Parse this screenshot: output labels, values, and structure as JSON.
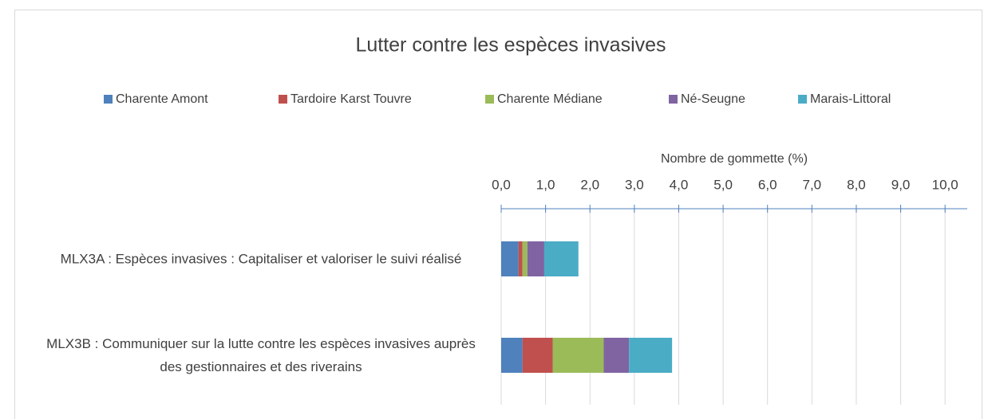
{
  "chart_data": {
    "type": "stacked-barh",
    "title": "Lutter contre les espèces invasives",
    "x_label": "Nombre de gommette (%)",
    "categories": [
      "MLX3A : Espèces invasives : Capitaliser et valoriser le suivi réalisé",
      "MLX3B : Communiquer sur la lutte contre les espèces invasives auprès des gestionnaires et des riverains"
    ],
    "series": [
      {
        "name": "Charente Amont",
        "color": "#4f81bd",
        "values": [
          0.39,
          0.48
        ]
      },
      {
        "name": "Tardoire Karst Touvre",
        "color": "#c0504d",
        "values": [
          0.09,
          0.68
        ]
      },
      {
        "name": "Charente Médiane",
        "color": "#9bbb59",
        "values": [
          0.11,
          1.15
        ]
      },
      {
        "name": "Né-Seugne",
        "color": "#8064a2",
        "values": [
          0.38,
          0.57
        ]
      },
      {
        "name": "Marais-Littoral",
        "color": "#4bacc6",
        "values": [
          0.77,
          0.97
        ]
      }
    ],
    "xlim": [
      0,
      10.5
    ],
    "xticks": [
      {
        "value": 0,
        "label": "0,0"
      },
      {
        "value": 1,
        "label": "1,0"
      },
      {
        "value": 2,
        "label": "2,0"
      },
      {
        "value": 3,
        "label": "3,0"
      },
      {
        "value": 4,
        "label": "4,0"
      },
      {
        "value": 5,
        "label": "5,0"
      },
      {
        "value": 6,
        "label": "6,0"
      },
      {
        "value": 7,
        "label": "7,0"
      },
      {
        "value": 8,
        "label": "8,0"
      },
      {
        "value": 9,
        "label": "9,0"
      },
      {
        "value": 10,
        "label": "10,0"
      }
    ],
    "grid": true,
    "legend": "top"
  }
}
